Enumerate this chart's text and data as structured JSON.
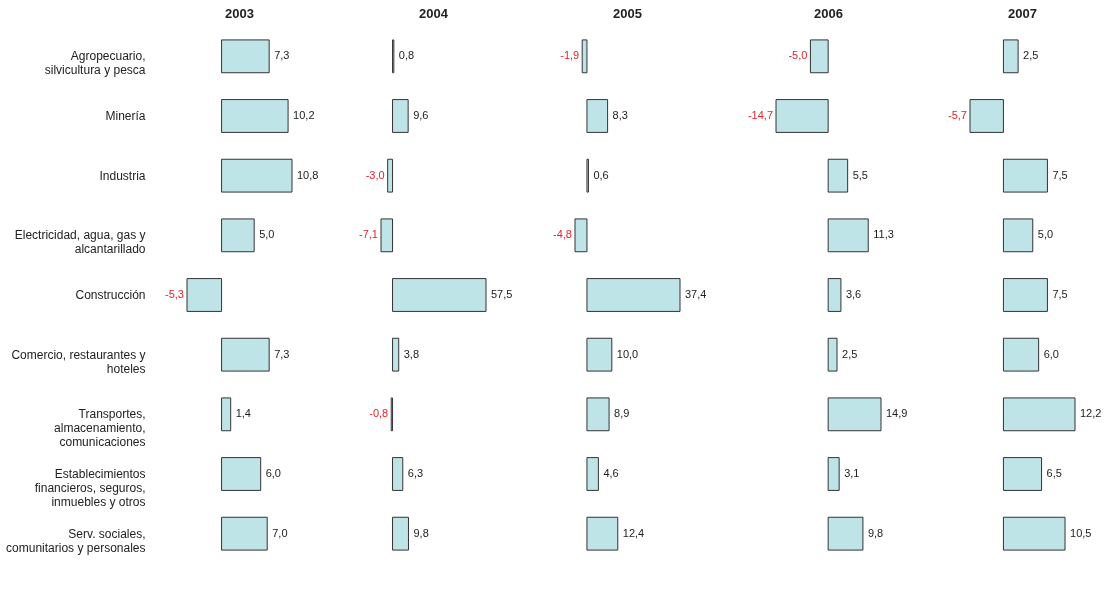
{
  "chart_data": [
    {
      "type": "bar",
      "orientation": "horizontal",
      "title": "2003",
      "color": "#bfe4e7",
      "tick_labels": "y",
      "categories": [
        "Agropecuario, silvicultura y pesca",
        "Minería",
        "Industria",
        "Electricidad, agua, gas y alcantarillado",
        "Construcción",
        "Comercio, restaurantes y hoteles",
        "Transportes, almacenamiento, comunicaciones",
        "Establecimientos financieros, seguros, inmuebles y otros",
        "Serv. sociales, comunitarios y personales"
      ],
      "values": [
        7.3,
        10.2,
        10.8,
        5.0,
        -5.3,
        7.3,
        1.4,
        6.0,
        7.0
      ],
      "value_labels": [
        "7,3",
        "10,2",
        "10,8",
        "5,0",
        "-5,3",
        "7,3",
        "1,4",
        "6,0",
        "7,0"
      ]
    },
    {
      "type": "bar",
      "orientation": "horizontal",
      "title": "2004",
      "color": "#bfe4e7",
      "tick_labels": false,
      "values": [
        0.8,
        9.6,
        -3.0,
        -7.1,
        57.5,
        3.8,
        -0.8,
        6.3,
        9.8
      ],
      "value_labels": [
        "0,8",
        "9,6",
        "-3,0",
        "-7,1",
        "57,5",
        "3,8",
        "-0,8",
        "6,3",
        "9,8"
      ]
    },
    {
      "type": "bar",
      "orientation": "horizontal",
      "title": "2005",
      "color": "#bfe4e7",
      "tick_labels": false,
      "values": [
        -1.9,
        8.3,
        0.6,
        -4.8,
        37.4,
        10.0,
        8.9,
        4.6,
        12.4
      ],
      "value_labels": [
        "-1,9",
        "8,3",
        "0,6",
        "-4,8",
        "37,4",
        "10,0",
        "8,9",
        "4,6",
        "12,4"
      ]
    },
    {
      "type": "bar",
      "orientation": "horizontal",
      "title": "2006",
      "color": "#bfe4e7",
      "tick_labels": false,
      "values": [
        -5.0,
        -14.7,
        5.5,
        11.3,
        3.6,
        2.5,
        14.9,
        3.1,
        9.8
      ],
      "value_labels": [
        "-5,0",
        "-14,7",
        "5,5",
        "11,3",
        "3,6",
        "2,5",
        "14,9",
        "3,1",
        "9,8"
      ]
    },
    {
      "type": "bar",
      "orientation": "horizontal",
      "title": "2007",
      "color": "#bfe4e7",
      "tick_labels": false,
      "values": [
        2.5,
        -5.7,
        7.5,
        5.0,
        7.5,
        6.0,
        12.2,
        6.5,
        10.5
      ],
      "value_labels": [
        "2,5",
        "-5,7",
        "7,5",
        "5,0",
        "7,5",
        "6,0",
        "12,2",
        "6,5",
        "10,5"
      ]
    }
  ]
}
